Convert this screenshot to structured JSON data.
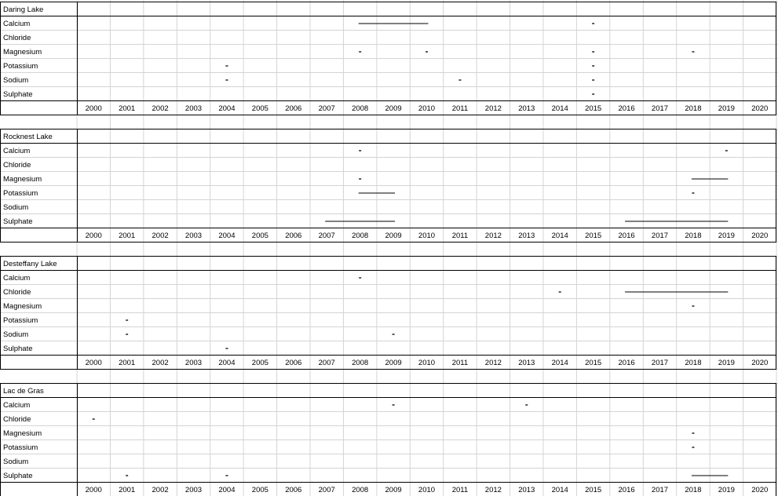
{
  "chart_data": {
    "type": "table",
    "years": [
      "2000",
      "2001",
      "2002",
      "2003",
      "2004",
      "2005",
      "2006",
      "2007",
      "2008",
      "2009",
      "2010",
      "2011",
      "2012",
      "2013",
      "2014",
      "2015",
      "2016",
      "2017",
      "2018",
      "2019",
      "2020"
    ],
    "lakes": [
      {
        "name": "Daring Lake",
        "rows": [
          {
            "label": "Calcium",
            "marks": [
              2015
            ],
            "spans": [
              [
                2008,
                2010
              ]
            ]
          },
          {
            "label": "Chloride",
            "marks": [],
            "spans": []
          },
          {
            "label": "Magnesium",
            "marks": [
              2008,
              2010,
              2015,
              2018
            ],
            "spans": []
          },
          {
            "label": "Potassium",
            "marks": [
              2004,
              2015
            ],
            "spans": []
          },
          {
            "label": "Sodium",
            "marks": [
              2004,
              2011,
              2015
            ],
            "spans": []
          },
          {
            "label": "Sulphate",
            "marks": [
              2015
            ],
            "spans": []
          }
        ]
      },
      {
        "name": "Rocknest Lake",
        "rows": [
          {
            "label": "Calcium",
            "marks": [
              2008,
              2019
            ],
            "spans": []
          },
          {
            "label": "Chloride",
            "marks": [],
            "spans": []
          },
          {
            "label": "Magnesium",
            "marks": [
              2008
            ],
            "spans": [
              [
                2018,
                2019
              ]
            ]
          },
          {
            "label": "Potassium",
            "marks": [
              2018
            ],
            "spans": [
              [
                2008,
                2009
              ]
            ]
          },
          {
            "label": "Sodium",
            "marks": [],
            "spans": []
          },
          {
            "label": "Sulphate",
            "marks": [],
            "spans": [
              [
                2007,
                2009
              ],
              [
                2016,
                2019
              ]
            ]
          }
        ]
      },
      {
        "name": "Desteffany Lake",
        "rows": [
          {
            "label": "Calcium",
            "marks": [
              2008
            ],
            "spans": []
          },
          {
            "label": "Chloride",
            "marks": [
              2014
            ],
            "spans": [
              [
                2016,
                2019
              ]
            ]
          },
          {
            "label": "Magnesium",
            "marks": [
              2018
            ],
            "spans": []
          },
          {
            "label": "Potassium",
            "marks": [
              2001
            ],
            "spans": []
          },
          {
            "label": "Sodium",
            "marks": [
              2001,
              2009
            ],
            "spans": []
          },
          {
            "label": "Sulphate",
            "marks": [
              2004
            ],
            "spans": []
          }
        ]
      },
      {
        "name": "Lac de Gras",
        "rows": [
          {
            "label": "Calcium",
            "marks": [
              2009,
              2013
            ],
            "spans": []
          },
          {
            "label": "Chloride",
            "marks": [
              2000
            ],
            "spans": []
          },
          {
            "label": "Magnesium",
            "marks": [
              2018
            ],
            "spans": []
          },
          {
            "label": "Potassium",
            "marks": [
              2018
            ],
            "spans": []
          },
          {
            "label": "Sodium",
            "marks": [],
            "spans": []
          },
          {
            "label": "Sulphate",
            "marks": [
              2001,
              2004
            ],
            "spans": [
              [
                2018,
                2019
              ]
            ]
          }
        ]
      }
    ]
  }
}
